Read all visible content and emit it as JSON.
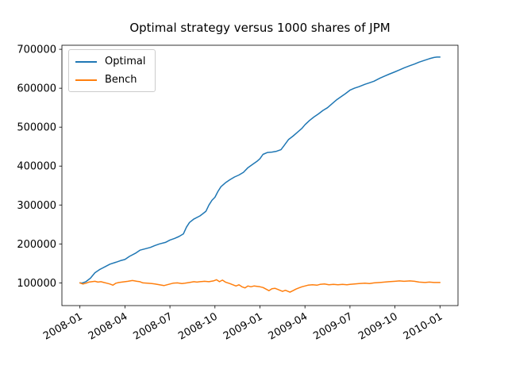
{
  "chart_data": {
    "type": "line",
    "title": "Optimal strategy versus 1000 shares of JPM",
    "grid": false,
    "legend": {
      "position": "upper-left",
      "entries": [
        "Optimal",
        "Bench"
      ]
    },
    "x_axis": {
      "tick_labels": [
        "2008-01",
        "2008-04",
        "2008-07",
        "2008-10",
        "2009-01",
        "2009-04",
        "2009-07",
        "2009-10",
        "2010-01"
      ],
      "tick_months": [
        0,
        3,
        6,
        9,
        12,
        15,
        18,
        21,
        24
      ],
      "range_months": [
        -1.2,
        25.2
      ],
      "label_rotation_deg": 30
    },
    "y_axis": {
      "ticks": [
        100000,
        200000,
        300000,
        400000,
        500000,
        600000,
        700000
      ],
      "range": [
        41600,
        710400
      ]
    },
    "series": [
      {
        "name": "Optimal",
        "color": "#1f77b4",
        "points": [
          [
            0,
            100000
          ],
          [
            0.15,
            99500
          ],
          [
            0.4,
            103000
          ],
          [
            0.7,
            112000
          ],
          [
            1.0,
            126000
          ],
          [
            1.3,
            134000
          ],
          [
            1.7,
            142000
          ],
          [
            2.0,
            148000
          ],
          [
            2.4,
            153000
          ],
          [
            2.7,
            157000
          ],
          [
            3.0,
            160000
          ],
          [
            3.3,
            168000
          ],
          [
            3.7,
            176000
          ],
          [
            4.0,
            184000
          ],
          [
            4.3,
            187000
          ],
          [
            4.7,
            191000
          ],
          [
            5.0,
            196000
          ],
          [
            5.3,
            200000
          ],
          [
            5.7,
            204000
          ],
          [
            6.0,
            210000
          ],
          [
            6.3,
            214000
          ],
          [
            6.6,
            219000
          ],
          [
            6.9,
            226000
          ],
          [
            7.1,
            243000
          ],
          [
            7.3,
            255000
          ],
          [
            7.6,
            264000
          ],
          [
            8.0,
            272000
          ],
          [
            8.2,
            278000
          ],
          [
            8.4,
            284000
          ],
          [
            8.6,
            300000
          ],
          [
            8.8,
            312000
          ],
          [
            9.0,
            320000
          ],
          [
            9.2,
            335000
          ],
          [
            9.4,
            347000
          ],
          [
            9.7,
            357000
          ],
          [
            10.0,
            365000
          ],
          [
            10.3,
            372000
          ],
          [
            10.6,
            377000
          ],
          [
            10.9,
            384000
          ],
          [
            11.2,
            396000
          ],
          [
            11.5,
            404000
          ],
          [
            11.8,
            412000
          ],
          [
            12.0,
            419000
          ],
          [
            12.2,
            430000
          ],
          [
            12.5,
            435000
          ],
          [
            12.8,
            436000
          ],
          [
            13.1,
            438000
          ],
          [
            13.4,
            442000
          ],
          [
            13.6,
            452000
          ],
          [
            13.9,
            468000
          ],
          [
            14.2,
            477000
          ],
          [
            14.5,
            487000
          ],
          [
            14.8,
            497000
          ],
          [
            15.0,
            506000
          ],
          [
            15.3,
            517000
          ],
          [
            15.6,
            526000
          ],
          [
            15.9,
            534000
          ],
          [
            16.2,
            543000
          ],
          [
            16.5,
            550000
          ],
          [
            16.8,
            560000
          ],
          [
            17.1,
            570000
          ],
          [
            17.4,
            578000
          ],
          [
            17.7,
            586000
          ],
          [
            18.0,
            595000
          ],
          [
            18.3,
            600000
          ],
          [
            18.6,
            604000
          ],
          [
            19.0,
            610000
          ],
          [
            19.3,
            614000
          ],
          [
            19.6,
            618000
          ],
          [
            20.0,
            626000
          ],
          [
            20.3,
            631000
          ],
          [
            20.6,
            636000
          ],
          [
            21.0,
            642000
          ],
          [
            21.3,
            647000
          ],
          [
            21.6,
            652000
          ],
          [
            22.0,
            658000
          ],
          [
            22.3,
            662000
          ],
          [
            22.6,
            667000
          ],
          [
            23.0,
            672000
          ],
          [
            23.3,
            676000
          ],
          [
            23.6,
            679000
          ],
          [
            23.8,
            680000
          ],
          [
            24.0,
            680000
          ]
        ]
      },
      {
        "name": "Bench",
        "color": "#ff7f0e",
        "points": [
          [
            0,
            100000
          ],
          [
            0.2,
            97000
          ],
          [
            0.4,
            99000
          ],
          [
            0.6,
            102000
          ],
          [
            0.8,
            103000
          ],
          [
            1.0,
            104000
          ],
          [
            1.2,
            102000
          ],
          [
            1.4,
            103000
          ],
          [
            1.6,
            101000
          ],
          [
            1.8,
            99000
          ],
          [
            2.0,
            97000
          ],
          [
            2.2,
            94000
          ],
          [
            2.4,
            99000
          ],
          [
            2.6,
            101000
          ],
          [
            2.8,
            102000
          ],
          [
            3.0,
            103000
          ],
          [
            3.2,
            104000
          ],
          [
            3.5,
            106000
          ],
          [
            3.8,
            104000
          ],
          [
            4.0,
            103000
          ],
          [
            4.2,
            100000
          ],
          [
            4.5,
            99000
          ],
          [
            4.8,
            98000
          ],
          [
            5.0,
            97000
          ],
          [
            5.3,
            95000
          ],
          [
            5.6,
            93000
          ],
          [
            5.8,
            95000
          ],
          [
            6.0,
            97000
          ],
          [
            6.2,
            99000
          ],
          [
            6.5,
            100000
          ],
          [
            6.8,
            98000
          ],
          [
            7.0,
            99000
          ],
          [
            7.3,
            101000
          ],
          [
            7.6,
            103000
          ],
          [
            7.8,
            102000
          ],
          [
            8.0,
            103000
          ],
          [
            8.3,
            104000
          ],
          [
            8.6,
            103000
          ],
          [
            8.9,
            105000
          ],
          [
            9.1,
            108000
          ],
          [
            9.3,
            103000
          ],
          [
            9.5,
            107000
          ],
          [
            9.7,
            102000
          ],
          [
            10.0,
            98000
          ],
          [
            10.2,
            95000
          ],
          [
            10.4,
            92000
          ],
          [
            10.6,
            95000
          ],
          [
            10.8,
            90000
          ],
          [
            11.0,
            87000
          ],
          [
            11.2,
            92000
          ],
          [
            11.4,
            90000
          ],
          [
            11.6,
            92000
          ],
          [
            11.8,
            91000
          ],
          [
            12.0,
            90000
          ],
          [
            12.2,
            88000
          ],
          [
            12.4,
            84000
          ],
          [
            12.6,
            80000
          ],
          [
            12.8,
            85000
          ],
          [
            13.0,
            86000
          ],
          [
            13.2,
            83000
          ],
          [
            13.5,
            78000
          ],
          [
            13.7,
            81000
          ],
          [
            14.0,
            76000
          ],
          [
            14.2,
            80000
          ],
          [
            14.4,
            84000
          ],
          [
            14.6,
            87000
          ],
          [
            14.8,
            90000
          ],
          [
            15.0,
            92000
          ],
          [
            15.2,
            94000
          ],
          [
            15.5,
            95000
          ],
          [
            15.8,
            94000
          ],
          [
            16.0,
            96000
          ],
          [
            16.3,
            97000
          ],
          [
            16.6,
            95000
          ],
          [
            16.9,
            96000
          ],
          [
            17.2,
            95000
          ],
          [
            17.5,
            96000
          ],
          [
            17.8,
            95000
          ],
          [
            18.0,
            96000
          ],
          [
            18.3,
            97000
          ],
          [
            18.6,
            98000
          ],
          [
            19.0,
            99000
          ],
          [
            19.3,
            98000
          ],
          [
            19.6,
            100000
          ],
          [
            20.0,
            101000
          ],
          [
            20.3,
            102000
          ],
          [
            20.6,
            103000
          ],
          [
            21.0,
            104000
          ],
          [
            21.3,
            105000
          ],
          [
            21.6,
            104000
          ],
          [
            22.0,
            105000
          ],
          [
            22.3,
            104000
          ],
          [
            22.6,
            102000
          ],
          [
            23.0,
            101000
          ],
          [
            23.3,
            102000
          ],
          [
            23.6,
            101000
          ],
          [
            24.0,
            101000
          ]
        ]
      }
    ]
  }
}
